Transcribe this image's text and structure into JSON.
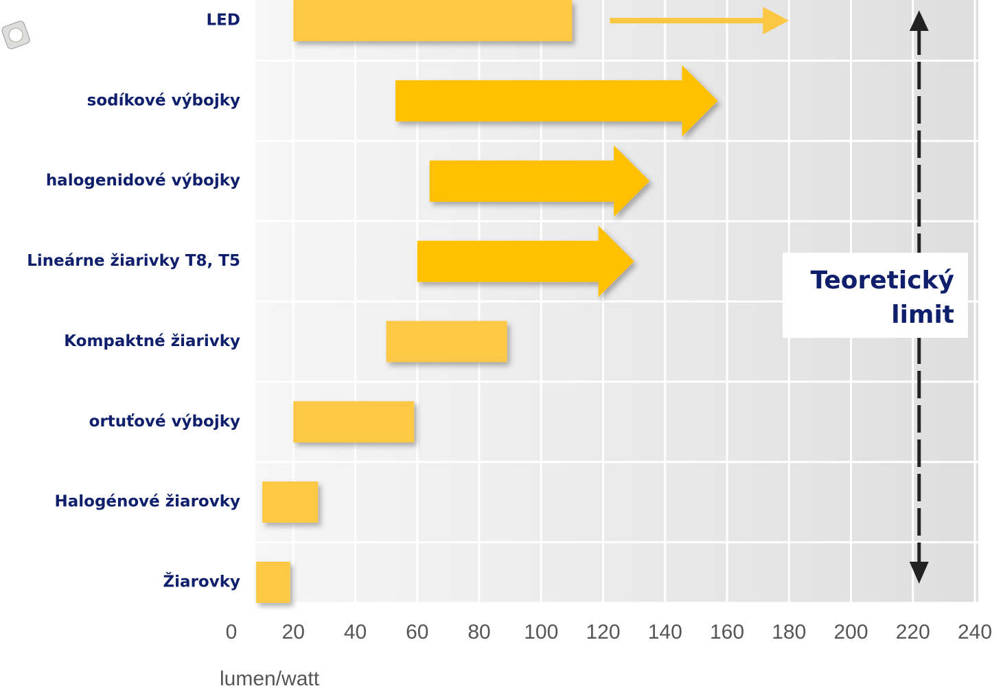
{
  "chart_data": {
    "type": "range-bar",
    "categories": [
      "LED",
      "sodíkové výbojky",
      "halogenidové výbojky",
      "Lineárne žiarivky T8, T5",
      "Kompaktné žiarivky",
      "ortuťové výbojky",
      "Halogénové žiarovky",
      "Žiarovky"
    ],
    "low": [
      20,
      53,
      64,
      60,
      50,
      20,
      10,
      8
    ],
    "high": [
      110,
      157,
      135,
      130,
      89,
      59,
      28,
      19
    ],
    "arrow": [
      false,
      true,
      true,
      true,
      false,
      false,
      false,
      false
    ],
    "extension": [
      180,
      null,
      null,
      null,
      null,
      null,
      null,
      null
    ],
    "bar_color": "#fcc844",
    "arrow_color": "#ffc000",
    "xlim": [
      0,
      240
    ],
    "xticks": [
      0,
      20,
      40,
      60,
      80,
      100,
      120,
      140,
      160,
      180,
      200,
      220,
      240
    ],
    "x_label": "lumen/watt",
    "limit": 222,
    "limit_label": [
      "Teoretický",
      "limit"
    ],
    "grid": true
  }
}
